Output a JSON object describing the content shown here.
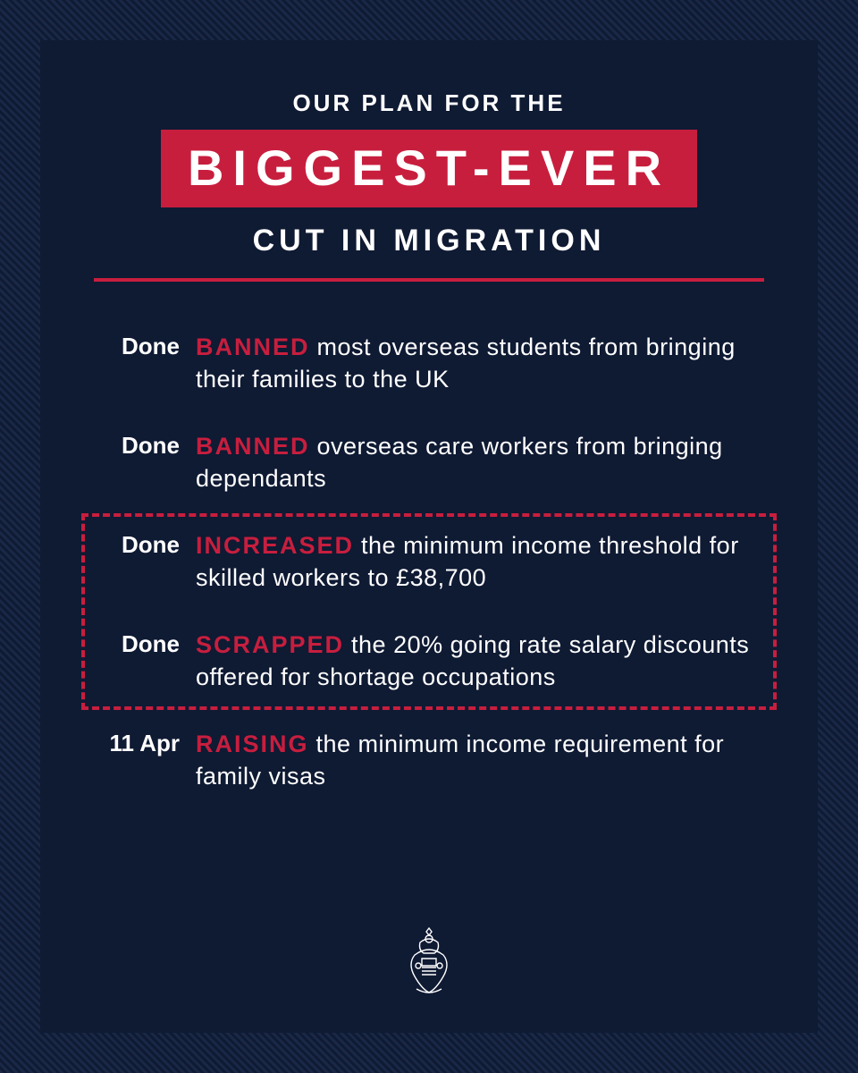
{
  "colors": {
    "bg_dark": "#0f1a33",
    "bg_stripe": "#1a2847",
    "accent": "#c81e3e",
    "text": "#ffffff"
  },
  "header": {
    "eyebrow": "OUR PLAN FOR THE",
    "banner": "BIGGEST-EVER",
    "subhead": "CUT IN MIGRATION"
  },
  "items": [
    {
      "status": "Done",
      "keyword": "BANNED",
      "text": " most overseas students from bringing their families to the UK"
    },
    {
      "status": "Done",
      "keyword": "BANNED",
      "text": " overseas care workers from bringing dependants"
    },
    {
      "status": "Done",
      "keyword": "INCREASED",
      "text": " the minimum income threshold for skilled workers to £38,700"
    },
    {
      "status": "Done",
      "keyword": "SCRAPPED",
      "text": " the 20% going rate salary discounts offered for shortage occupations"
    },
    {
      "status": "11 Apr",
      "keyword": "RAISING",
      "text": " the minimum income requirement for family visas"
    }
  ],
  "highlight_box": {
    "from_index": 2,
    "to_index": 3
  },
  "crest_name": "uk-royal-crest"
}
